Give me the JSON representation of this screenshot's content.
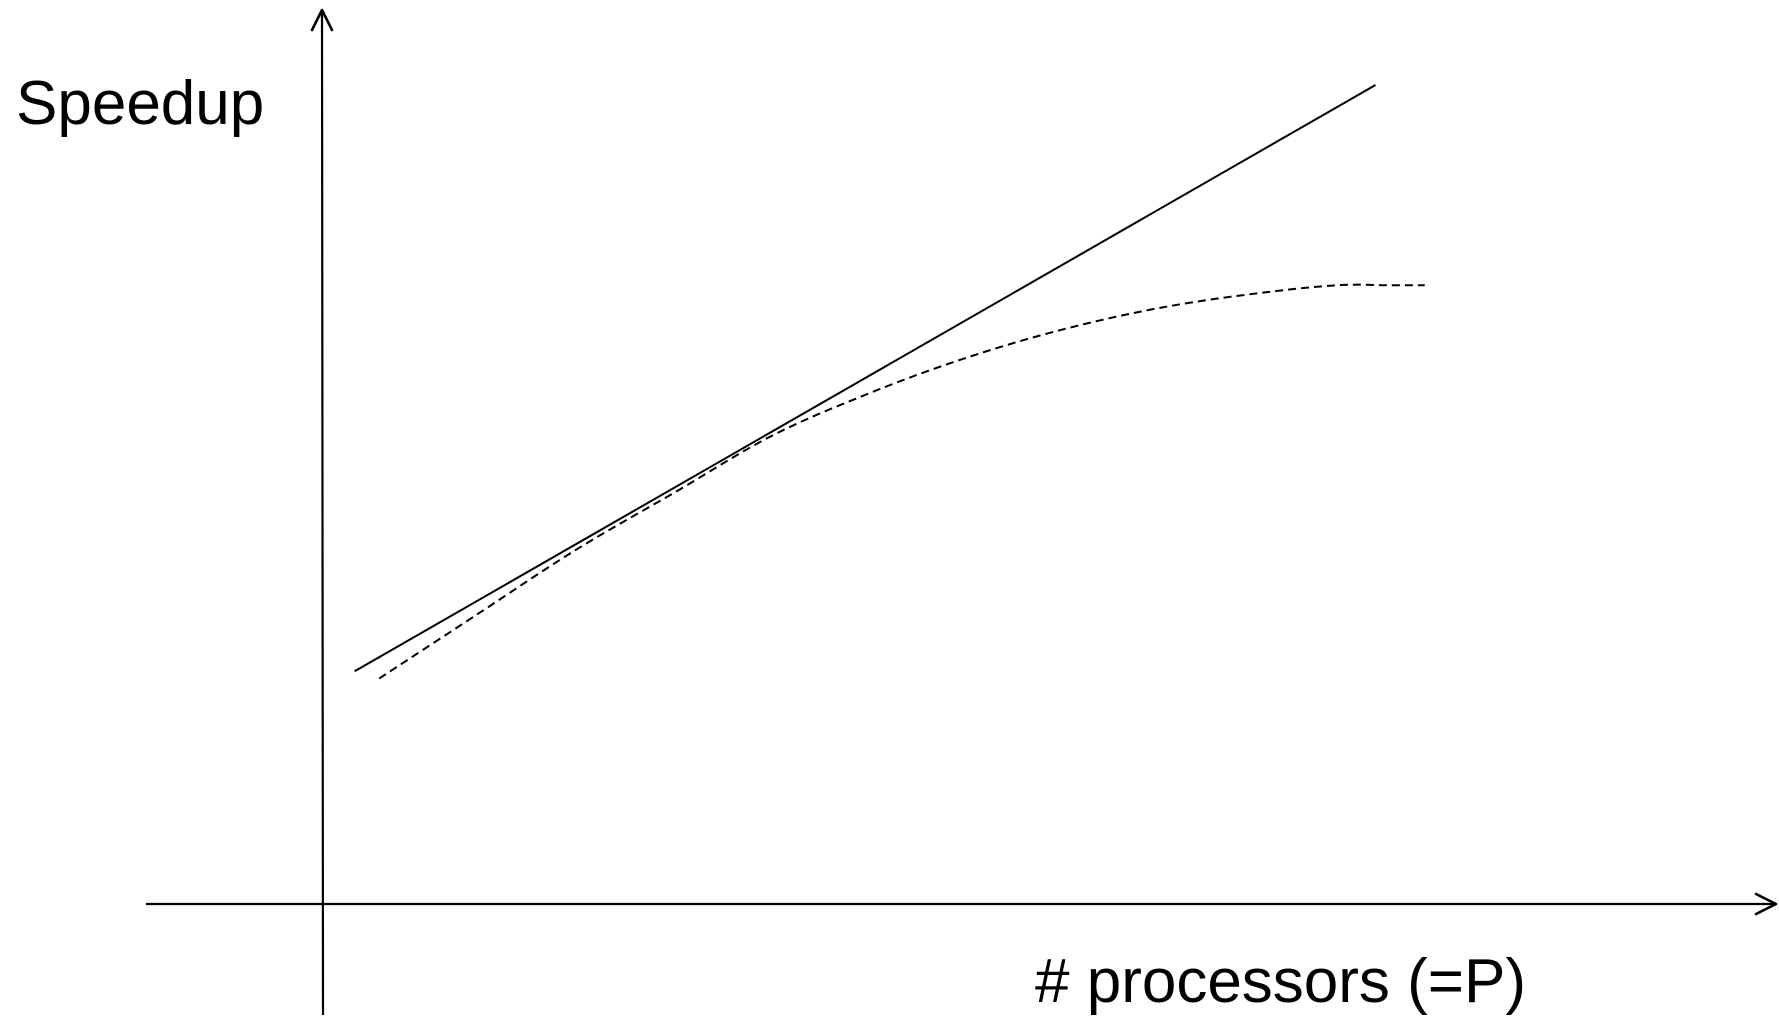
{
  "chart_data": {
    "type": "line",
    "xlabel": "# processors (=P)",
    "ylabel": "Speedup",
    "grid": false,
    "legend": "none",
    "x_ticks_shown": false,
    "y_ticks_shown": false,
    "xlim": [
      0,
      100
    ],
    "ylim": [
      0,
      100
    ],
    "series": [
      {
        "style": "solid",
        "color": "#000000",
        "x": [
          2,
          85
        ],
        "y": [
          18,
          100
        ]
      },
      {
        "style": "dashed",
        "color": "#000000",
        "x": [
          4,
          12,
          20,
          28,
          36,
          44,
          52,
          60,
          68,
          76,
          82,
          86,
          89
        ],
        "y": [
          17,
          26,
          35,
          43,
          51,
          57,
          62,
          66,
          69,
          71,
          72,
          72,
          72
        ]
      }
    ]
  }
}
